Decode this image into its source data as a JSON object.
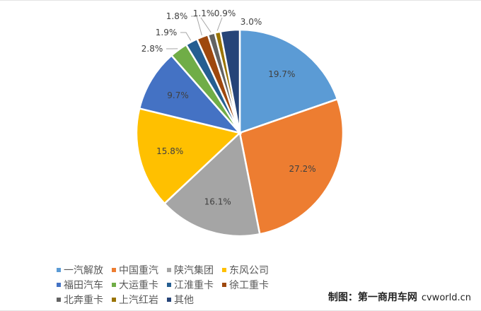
{
  "chart_data": {
    "type": "pie",
    "start": "12 o'clock, clockwise",
    "slices": [
      {
        "name": "一汽解放",
        "value": 19.7,
        "label": "19.7%",
        "color": "#5B9BD5"
      },
      {
        "name": "中国重汽",
        "value": 27.2,
        "label": "27.2%",
        "color": "#ED7D31"
      },
      {
        "name": "陕汽集团",
        "value": 16.1,
        "label": "16.1%",
        "color": "#A5A5A5"
      },
      {
        "name": "东风公司",
        "value": 15.8,
        "label": "15.8%",
        "color": "#FFC000"
      },
      {
        "name": "福田汽车",
        "value": 9.7,
        "label": "9.7%",
        "color": "#4472C4"
      },
      {
        "name": "大运重卡",
        "value": 2.8,
        "label": "2.8%",
        "color": "#70AD47"
      },
      {
        "name": "江淮重卡",
        "value": 1.9,
        "label": "1.9%",
        "color": "#255E91"
      },
      {
        "name": "徐工重卡",
        "value": 1.8,
        "label": "1.8%",
        "color": "#9E480E"
      },
      {
        "name": "北奔重卡",
        "value": 1.1,
        "label": "1.1%",
        "color": "#636363"
      },
      {
        "name": "上汽红岩",
        "value": 0.9,
        "label": "0.9%",
        "color": "#997300"
      },
      {
        "name": "其他",
        "value": 3.0,
        "label": "3.0%",
        "color": "#264478"
      }
    ],
    "legend_position": "bottom"
  },
  "credit": {
    "text": "制图：第一商用车网",
    "site": "cvworld.cn"
  }
}
